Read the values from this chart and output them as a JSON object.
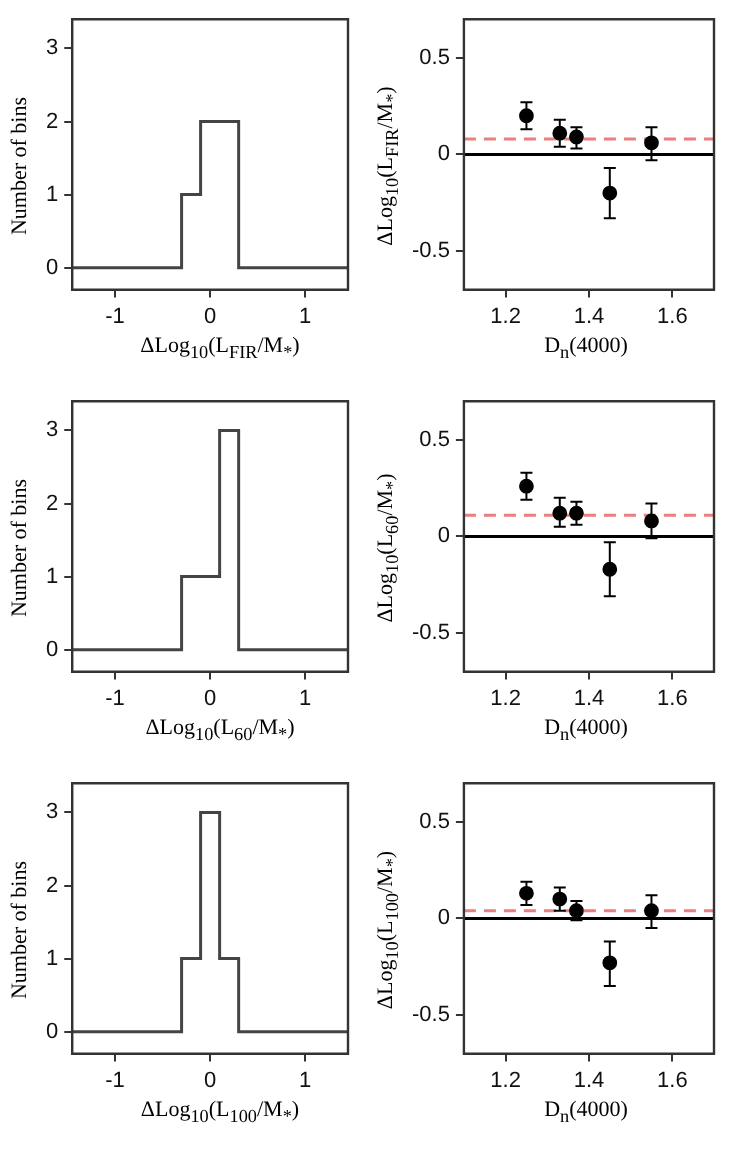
{
  "chart_data": [
    {
      "type": "histogram",
      "xlabel": "ΔLog$_{10}$(L$_{FIR}$/M$_{*}$)",
      "ylabel": "Number of bins",
      "color": "#444444",
      "bins": [
        -1.45,
        -0.3,
        -0.1,
        0.1,
        0.3,
        1.45
      ],
      "values": [
        0,
        1,
        2,
        2,
        0
      ],
      "xlim": [
        -1.45,
        1.45
      ],
      "xticks": [
        -1,
        0,
        1
      ],
      "ylim": [
        -0.3,
        3.4
      ],
      "yticks": [
        0,
        1,
        2,
        3
      ]
    },
    {
      "type": "scatter",
      "xlabel": "D$_{n}$(4000)",
      "ylabel": "ΔLog$_{10}$(L$_{FIR}$/M$_{*}$)",
      "color": "#000000",
      "marker": "circle",
      "x": [
        1.25,
        1.33,
        1.37,
        1.45,
        1.55
      ],
      "values": [
        0.2,
        0.11,
        0.09,
        -0.2,
        0.06
      ],
      "errors": [
        [
          0.13,
          0.27
        ],
        [
          0.04,
          0.18
        ],
        [
          0.03,
          0.14
        ],
        [
          -0.33,
          -0.07
        ],
        [
          -0.03,
          0.14
        ]
      ],
      "xlim": [
        1.1,
        1.7
      ],
      "xticks": [
        1.2,
        1.4,
        1.6
      ],
      "ylim": [
        -0.7,
        0.7
      ],
      "yticks": [
        -0.5,
        0,
        0.5
      ],
      "ref_lines": [
        {
          "axis": "y",
          "value": 0,
          "color": "#000000",
          "line_style": "solid"
        },
        {
          "axis": "y",
          "value": 0.08,
          "color": "#e88080",
          "line_style": "dashed"
        }
      ]
    },
    {
      "type": "histogram",
      "xlabel": "ΔLog$_{10}$(L$_{60}$/M$_{*}$)",
      "ylabel": "Number of bins",
      "color": "#444444",
      "bins": [
        -1.45,
        -0.3,
        -0.1,
        0.1,
        0.3,
        1.45
      ],
      "values": [
        0,
        1,
        1,
        3,
        0
      ],
      "xlim": [
        -1.45,
        1.45
      ],
      "xticks": [
        -1,
        0,
        1
      ],
      "ylim": [
        -0.3,
        3.4
      ],
      "yticks": [
        0,
        1,
        2,
        3
      ]
    },
    {
      "type": "scatter",
      "xlabel": "D$_{n}$(4000)",
      "ylabel": "ΔLog$_{10}$(L$_{60}$/M$_{*}$)",
      "color": "#000000",
      "marker": "circle",
      "x": [
        1.25,
        1.33,
        1.37,
        1.45,
        1.55
      ],
      "values": [
        0.26,
        0.12,
        0.12,
        -0.17,
        0.08
      ],
      "errors": [
        [
          0.19,
          0.33
        ],
        [
          0.05,
          0.2
        ],
        [
          0.06,
          0.18
        ],
        [
          -0.31,
          -0.03
        ],
        [
          -0.01,
          0.17
        ]
      ],
      "xlim": [
        1.1,
        1.7
      ],
      "xticks": [
        1.2,
        1.4,
        1.6
      ],
      "ylim": [
        -0.7,
        0.7
      ],
      "yticks": [
        -0.5,
        0,
        0.5
      ],
      "ref_lines": [
        {
          "axis": "y",
          "value": 0,
          "color": "#000000",
          "line_style": "solid"
        },
        {
          "axis": "y",
          "value": 0.11,
          "color": "#e88080",
          "line_style": "dashed"
        }
      ]
    },
    {
      "type": "histogram",
      "xlabel": "ΔLog$_{10}$(L$_{100}$/M$_{*}$)",
      "ylabel": "Number of bins",
      "color": "#444444",
      "bins": [
        -1.45,
        -0.3,
        -0.1,
        0.1,
        0.3,
        1.45
      ],
      "values": [
        0,
        1,
        3,
        1,
        0
      ],
      "xlim": [
        -1.45,
        1.45
      ],
      "xticks": [
        -1,
        0,
        1
      ],
      "ylim": [
        -0.3,
        3.4
      ],
      "yticks": [
        0,
        1,
        2,
        3
      ]
    },
    {
      "type": "scatter",
      "xlabel": "D$_{n}$(4000)",
      "ylabel": "ΔLog$_{10}$(L$_{100}$/M$_{*}$)",
      "color": "#000000",
      "marker": "circle",
      "x": [
        1.25,
        1.33,
        1.37,
        1.45,
        1.55
      ],
      "values": [
        0.13,
        0.1,
        0.04,
        -0.23,
        0.04
      ],
      "errors": [
        [
          0.07,
          0.19
        ],
        [
          0.04,
          0.16
        ],
        [
          -0.01,
          0.09
        ],
        [
          -0.35,
          -0.12
        ],
        [
          -0.05,
          0.12
        ]
      ],
      "xlim": [
        1.1,
        1.7
      ],
      "xticks": [
        1.2,
        1.4,
        1.6
      ],
      "ylim": [
        -0.7,
        0.7
      ],
      "yticks": [
        -0.5,
        0,
        0.5
      ],
      "ref_lines": [
        {
          "axis": "y",
          "value": 0,
          "color": "#000000",
          "line_style": "solid"
        },
        {
          "axis": "y",
          "value": 0.04,
          "color": "#e88080",
          "line_style": "dashed"
        }
      ]
    }
  ]
}
